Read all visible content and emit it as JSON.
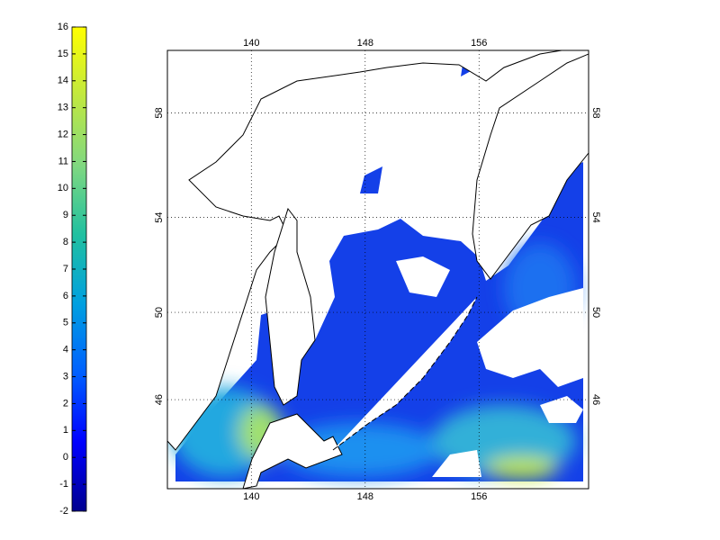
{
  "map": {
    "colorbar": {
      "range": [
        -2,
        16
      ],
      "ticks": [
        -2,
        -1,
        0,
        1,
        2,
        3,
        4,
        5,
        6,
        7,
        8,
        9,
        10,
        11,
        12,
        13,
        14,
        15,
        16
      ],
      "colormap": [
        "#00008f",
        "#0000ff",
        "#0060ff",
        "#00a0e0",
        "#20c0a0",
        "#80d880",
        "#c0e840",
        "#ffff00"
      ]
    },
    "lonlim": [
      134.1,
      163.7
    ],
    "latlim": [
      41.6,
      60.2
    ],
    "lon_ticks": [
      140,
      148,
      156
    ],
    "lat_ticks": [
      46,
      50,
      54,
      58
    ],
    "grid": true
  }
}
